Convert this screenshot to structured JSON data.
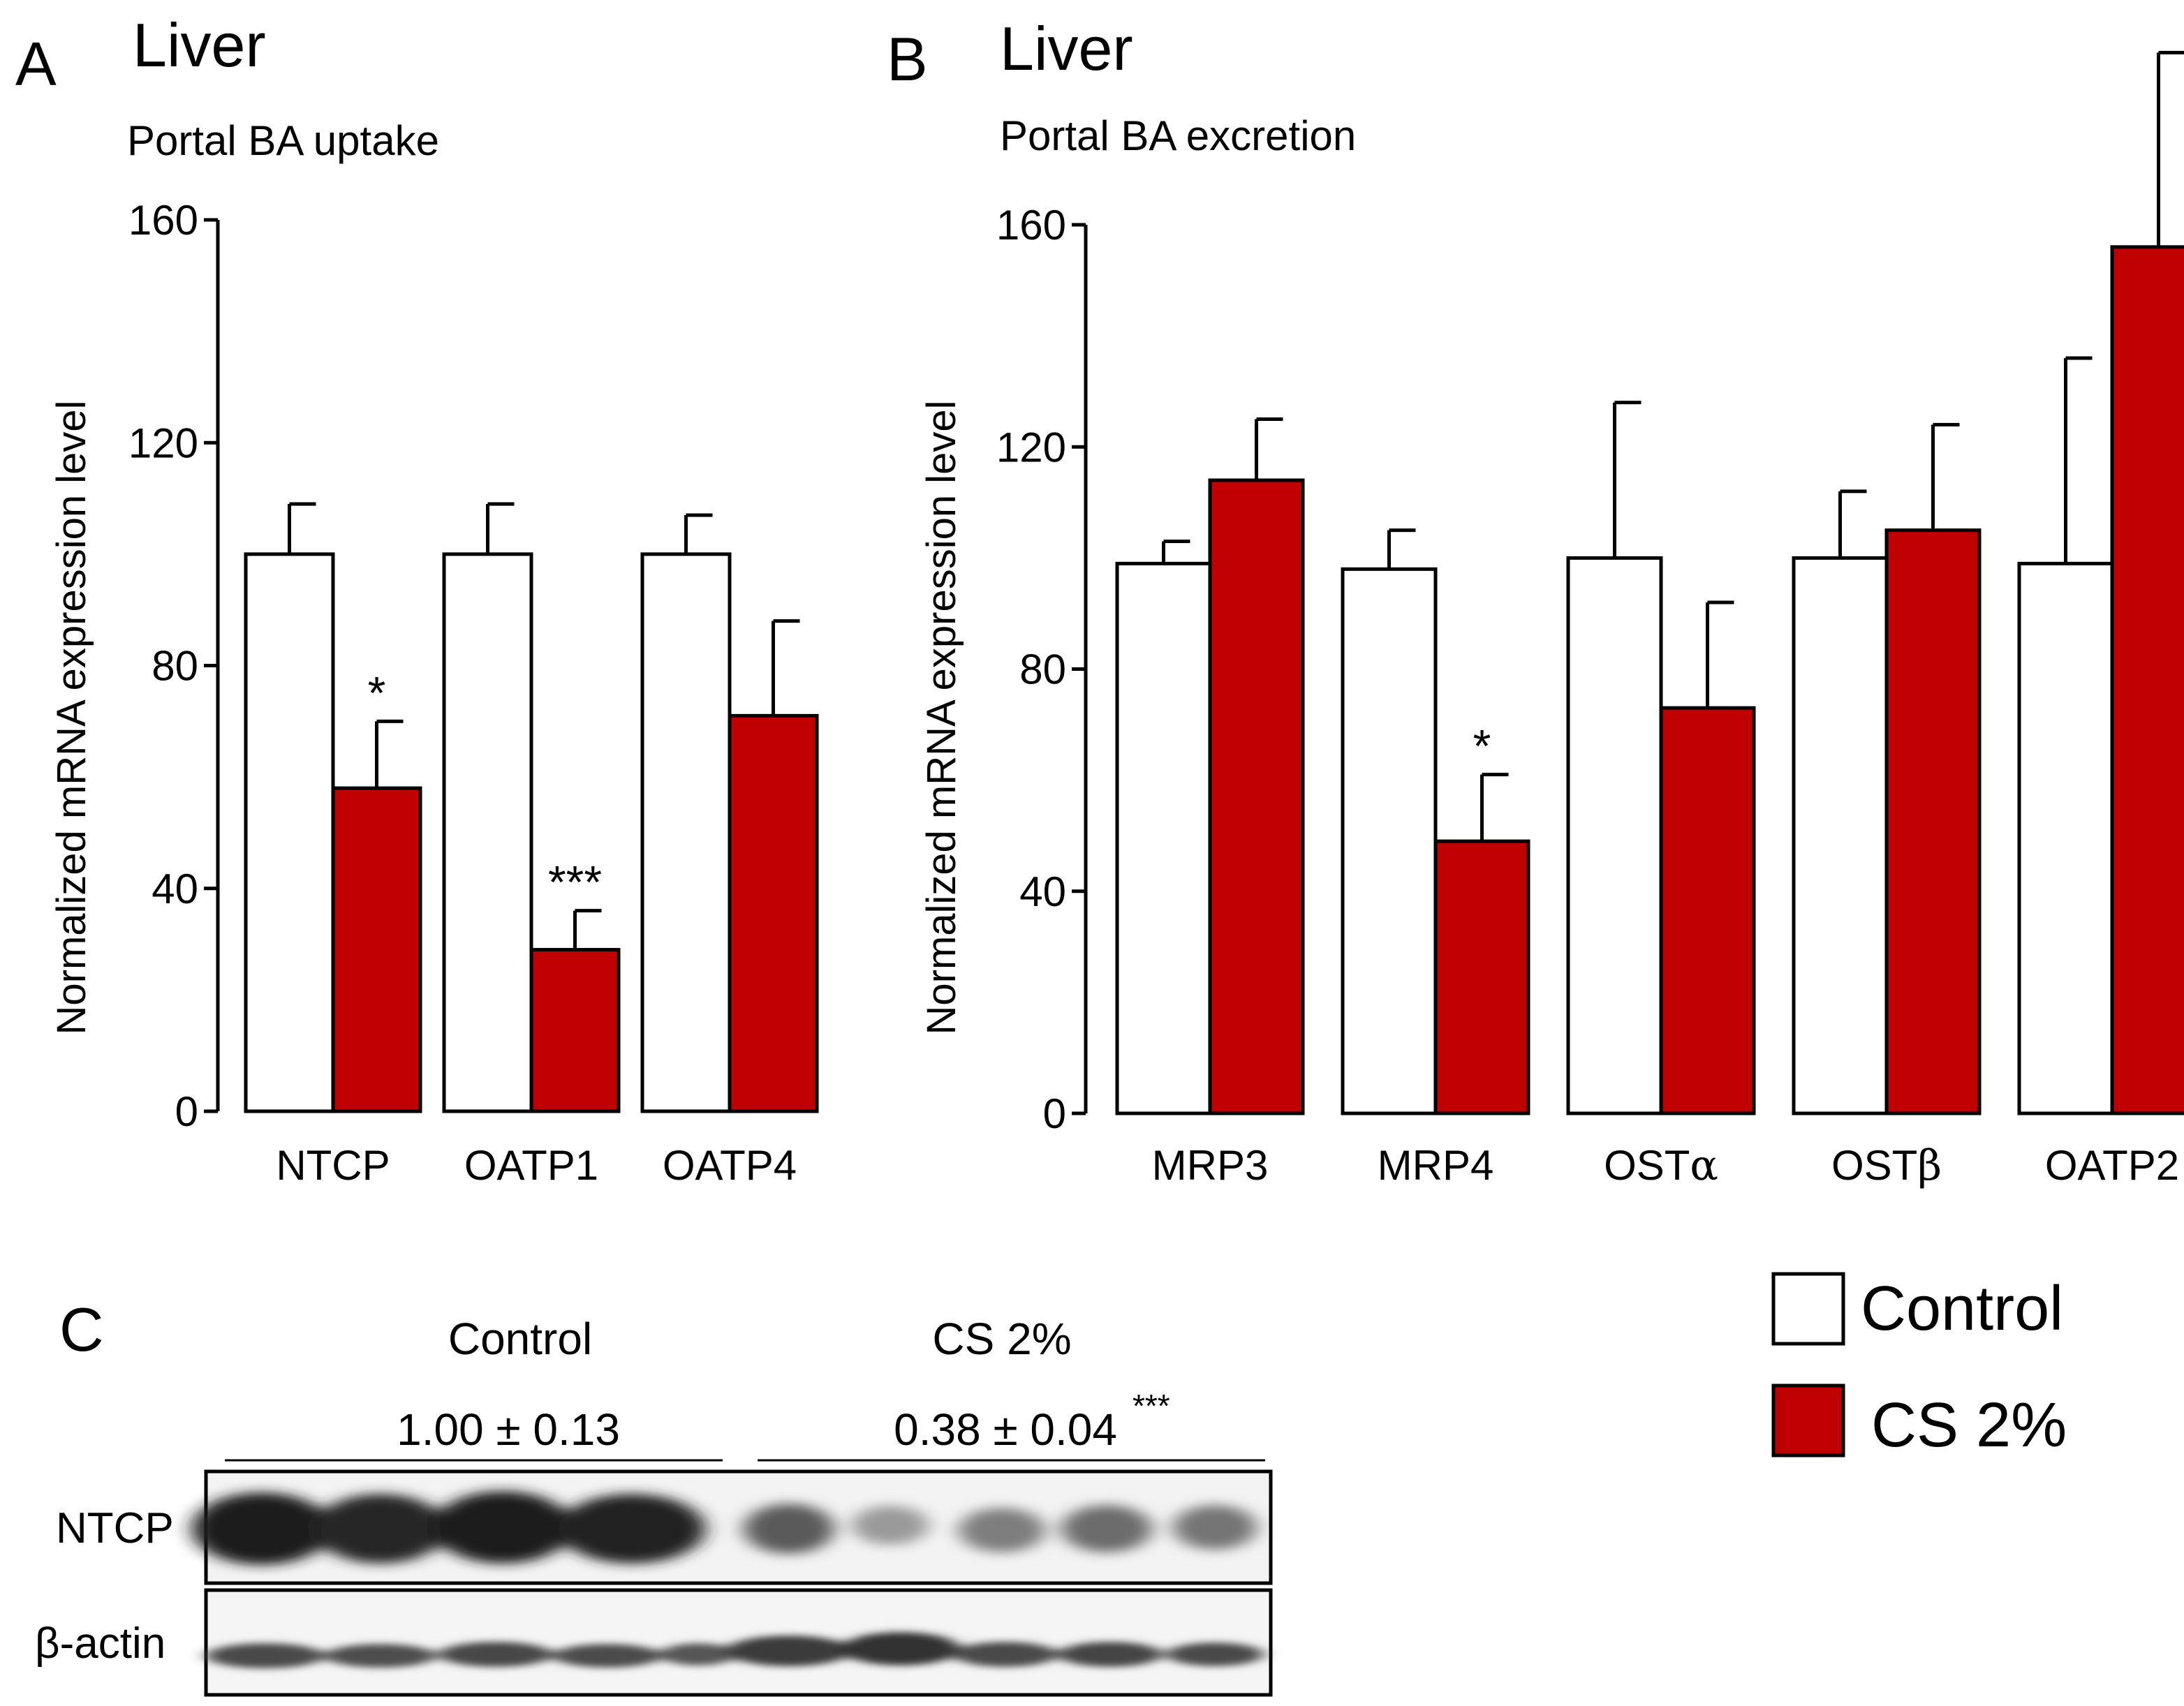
{
  "colors": {
    "control": "#ffffff",
    "cs": "#c00000",
    "stroke": "#000000"
  },
  "chart_data": [
    {
      "panel_letter": "A",
      "type": "bar",
      "title": "Liver",
      "subtitle": "Portal BA uptake",
      "ylabel": "Normalized  mRNA  expression level",
      "xlabel": "",
      "ylim": [
        0,
        160
      ],
      "yticks": [
        "0",
        "40",
        "80",
        "120",
        "160"
      ],
      "categories": [
        "NTCP",
        "OATP1",
        "OATP4"
      ],
      "series": [
        {
          "name": "Control",
          "values": [
            100,
            100,
            100
          ],
          "errors": [
            9,
            9,
            7
          ]
        },
        {
          "name": "CS 2%",
          "values": [
            58,
            29,
            71
          ],
          "errors": [
            12,
            7,
            17
          ]
        }
      ],
      "annotations": [
        "*",
        "***",
        ""
      ]
    },
    {
      "panel_letter": "B",
      "type": "bar",
      "title": "Liver",
      "subtitle": "Portal BA excretion",
      "ylabel": "Normalized  mRNA  expression level",
      "xlabel": "",
      "ylim": [
        0,
        160
      ],
      "yticks": [
        "0",
        "40",
        "80",
        "120",
        "160"
      ],
      "categories": [
        "MRP3",
        "MRP4",
        "OSTα",
        "OSTβ",
        "OATP2"
      ],
      "series": [
        {
          "name": "Control",
          "values": [
            99,
            98,
            100,
            100,
            99
          ],
          "errors": [
            4,
            7,
            28,
            12,
            37
          ]
        },
        {
          "name": "CS 2%",
          "values": [
            114,
            49,
            73,
            105,
            156
          ],
          "errors": [
            11,
            12,
            19,
            19,
            35
          ]
        }
      ],
      "annotations": [
        "",
        "*",
        "",
        "",
        ""
      ]
    }
  ],
  "legend": {
    "items": [
      "Control",
      "CS 2%"
    ]
  },
  "blot": {
    "panel_letter": "C",
    "group_labels": [
      "Control",
      "CS 2%"
    ],
    "values": [
      "1.00 ± 0.13",
      "0.38 ± 0.04"
    ],
    "significance": "***",
    "rows": [
      "NTCP",
      "β-actin"
    ]
  }
}
